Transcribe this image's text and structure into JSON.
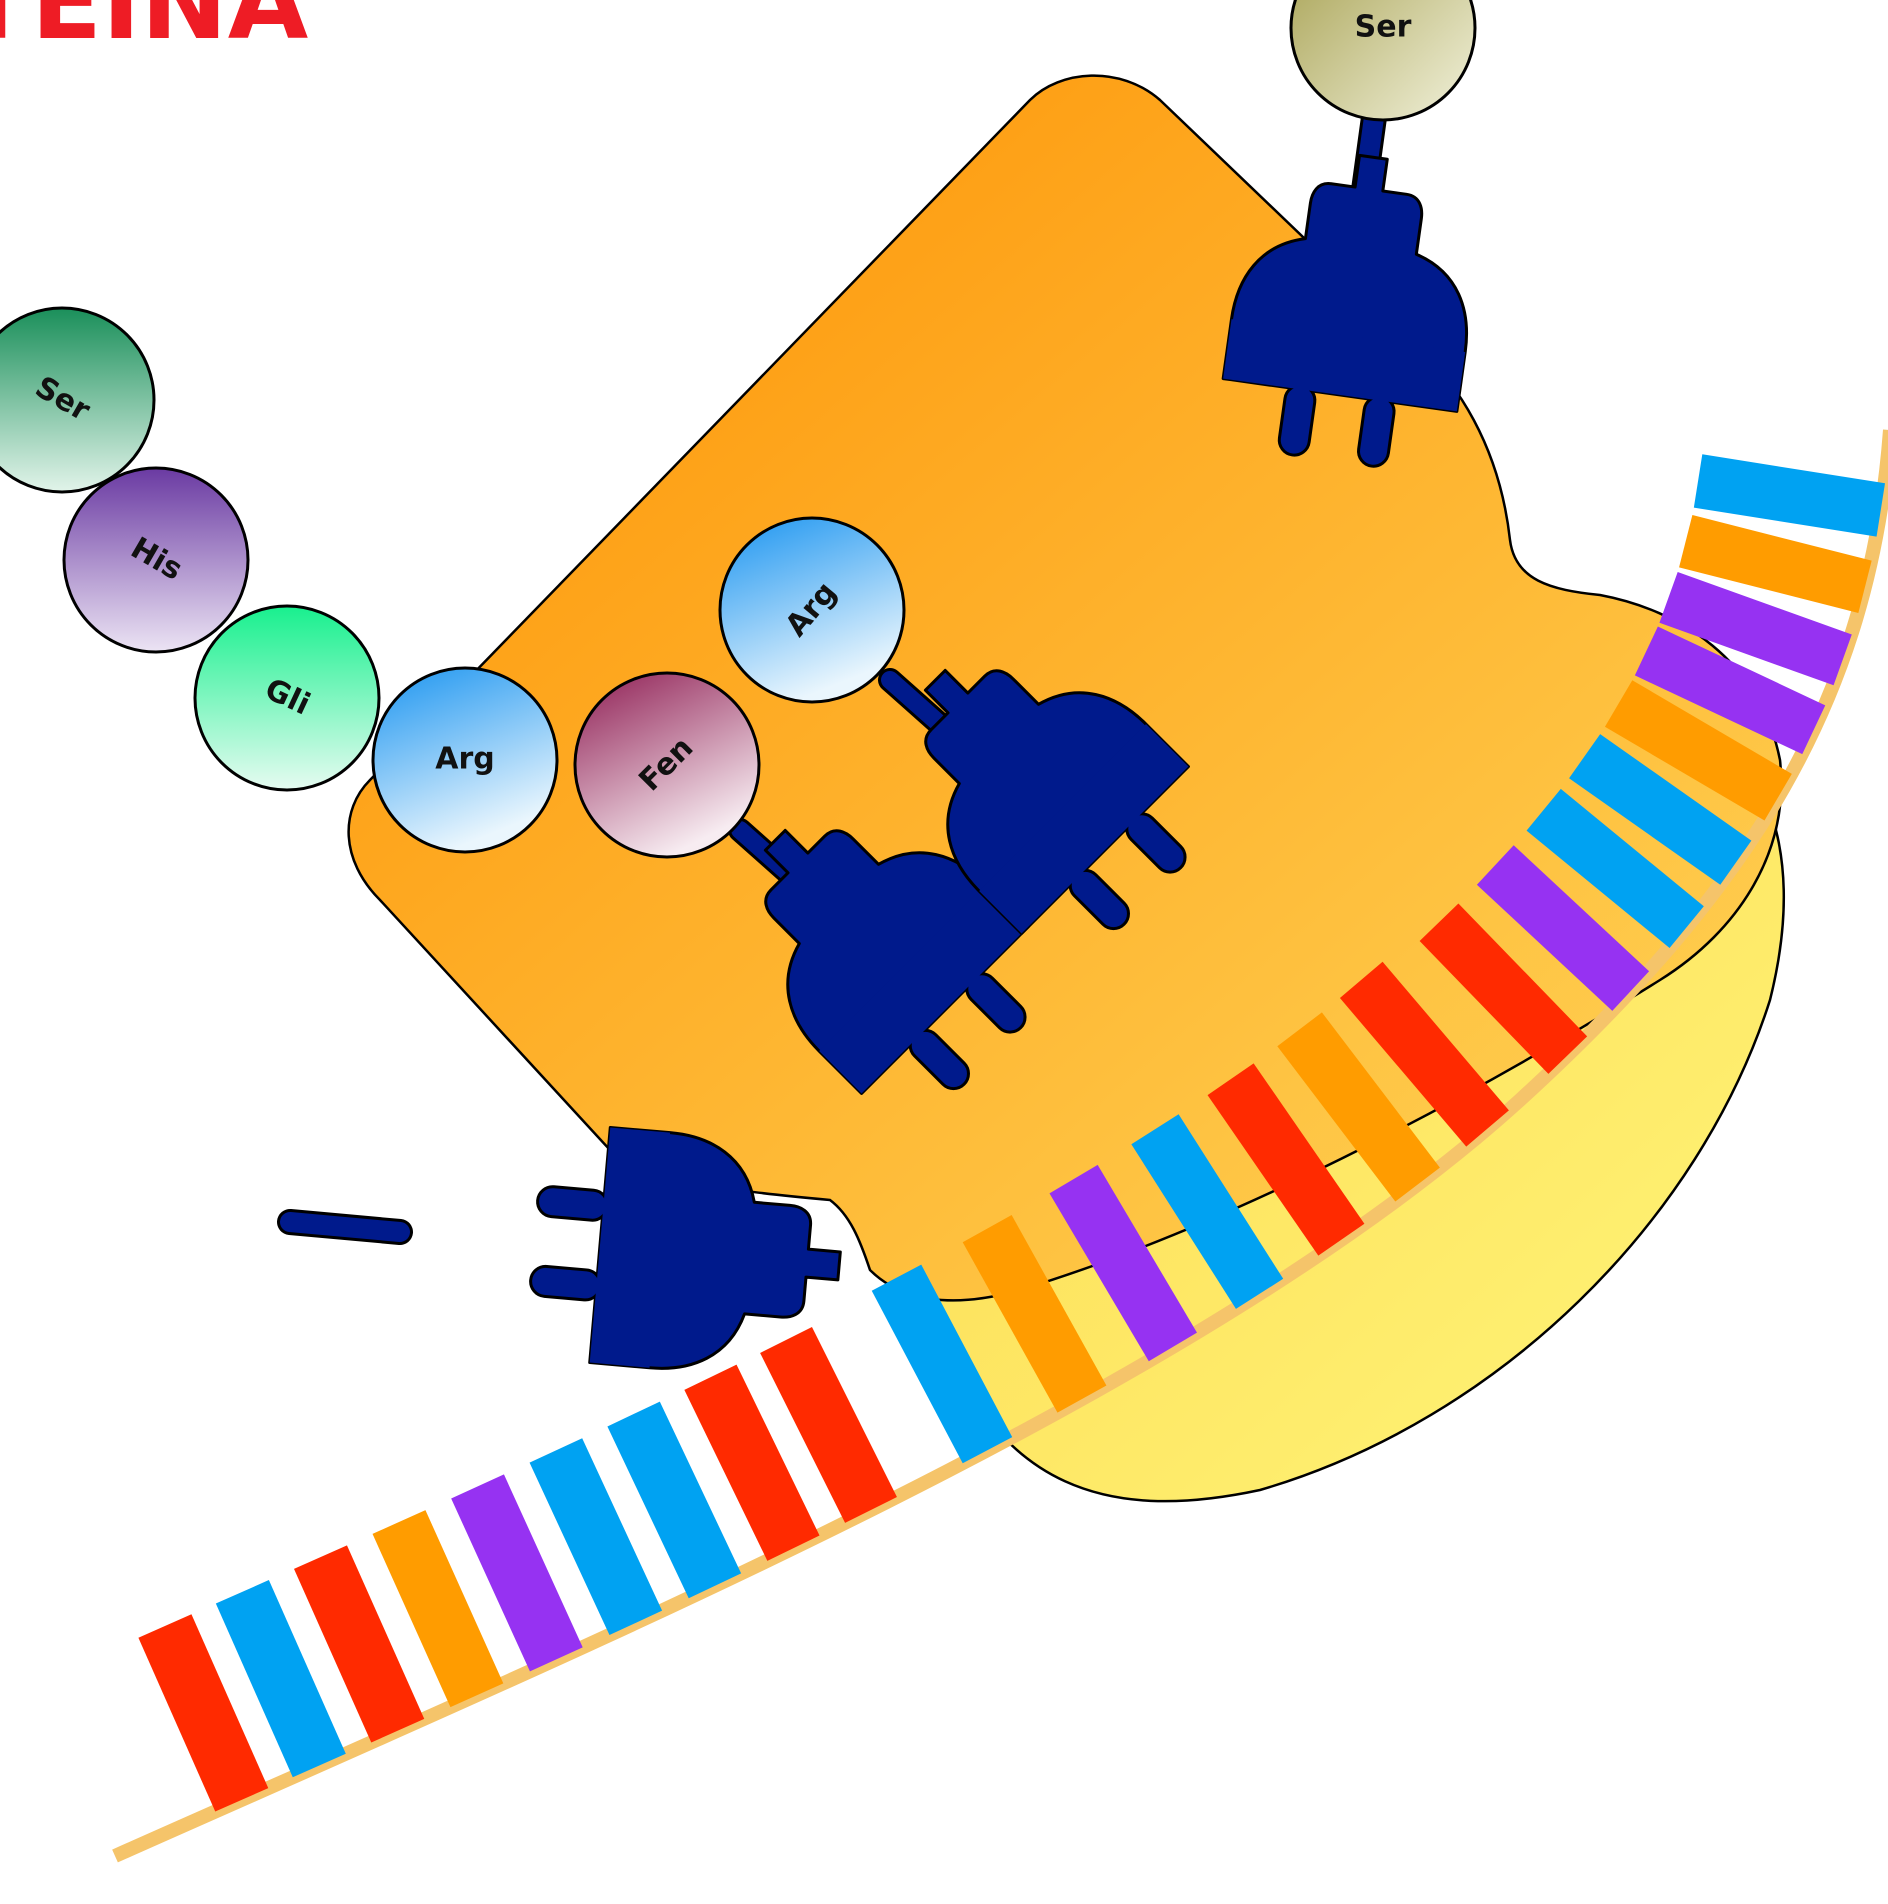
{
  "title_fragment": "TEINA",
  "colors": {
    "ribosome_large": "#f9a21b",
    "ribosome_small": "#fdea6a",
    "trna": "#001a8c",
    "mrna_backbone": "#f5c46a",
    "codon_red": "#ff2a00",
    "codon_blue": "#00a2f2",
    "codon_orange": "#ff9c00",
    "codon_purple": "#9632f2",
    "title": "#ee1c25"
  },
  "amino_acids": [
    {
      "label": "Ser",
      "role": "chain"
    },
    {
      "label": "His",
      "role": "chain"
    },
    {
      "label": "Gli",
      "role": "chain"
    },
    {
      "label": "Arg",
      "role": "chain"
    },
    {
      "label": "Fen",
      "role": "on-trna"
    },
    {
      "label": "Arg",
      "role": "on-trna"
    },
    {
      "label": "Ser",
      "role": "incoming-trna"
    }
  ],
  "mrna_codons_upper": [
    "blue",
    "orange",
    "purple",
    "blue",
    "red",
    "orange",
    "red",
    "red",
    "purple",
    "blue",
    "blue",
    "orange",
    "purple",
    "purple",
    "orange",
    "blue"
  ],
  "mrna_codons_lower": [
    "red",
    "blue",
    "red",
    "orange",
    "purple",
    "blue",
    "blue",
    "red",
    "red"
  ]
}
